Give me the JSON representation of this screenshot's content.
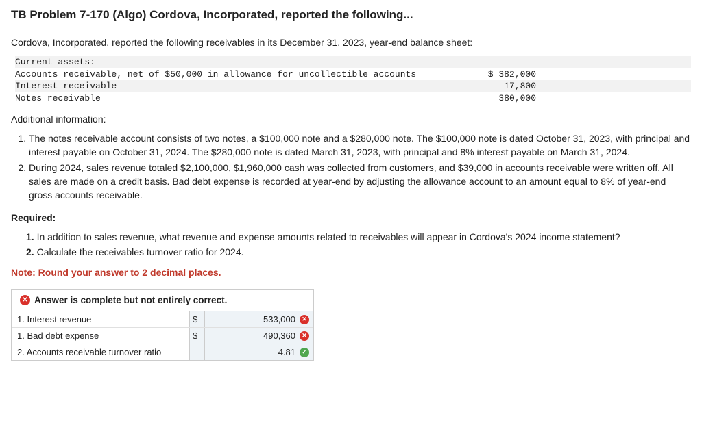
{
  "title": "TB Problem 7-170 (Algo) Cordova, Incorporated, reported the following...",
  "intro": "Cordova, Incorporated, reported the following receivables in its December 31, 2023, year-end balance sheet:",
  "ledger": {
    "heading": "Current assets:",
    "rows": [
      {
        "label": "Accounts receivable, net of $50,000 in allowance for uncollectible accounts",
        "value": "$ 382,000"
      },
      {
        "label": "Interest receivable",
        "value": "17,800"
      },
      {
        "label": "Notes receivable",
        "value": "380,000"
      }
    ]
  },
  "additional_label": "Additional information:",
  "info_items": [
    "The notes receivable account consists of two notes, a $100,000 note and a $280,000 note. The $100,000 note is dated October 31, 2023, with principal and interest payable on October 31, 2024. The $280,000 note is dated March 31, 2023, with principal and 8% interest payable on March 31, 2024.",
    "During 2024, sales revenue totaled $2,100,000, $1,960,000 cash was collected from customers, and $39,000 in accounts receivable were written off. All sales are made on a credit basis. Bad debt expense is recorded at year-end by adjusting the allowance account to an amount equal to 8% of year-end gross accounts receivable."
  ],
  "required_label": "Required:",
  "required_items": [
    "In addition to sales revenue, what revenue and expense amounts related to receivables will appear in Cordova's 2024 income statement?",
    "Calculate the receivables turnover ratio for 2024."
  ],
  "note": "Note: Round your answer to 2 decimal places.",
  "feedback": {
    "header": "Answer is complete but not entirely correct.",
    "rows": [
      {
        "label": "1. Interest revenue",
        "currency": "$",
        "value": "533,000",
        "status": "wrong"
      },
      {
        "label": "1. Bad debt expense",
        "currency": "$",
        "value": "490,360",
        "status": "wrong"
      },
      {
        "label": "2. Accounts receivable turnover ratio",
        "currency": "",
        "value": "4.81",
        "status": "correct"
      }
    ]
  }
}
